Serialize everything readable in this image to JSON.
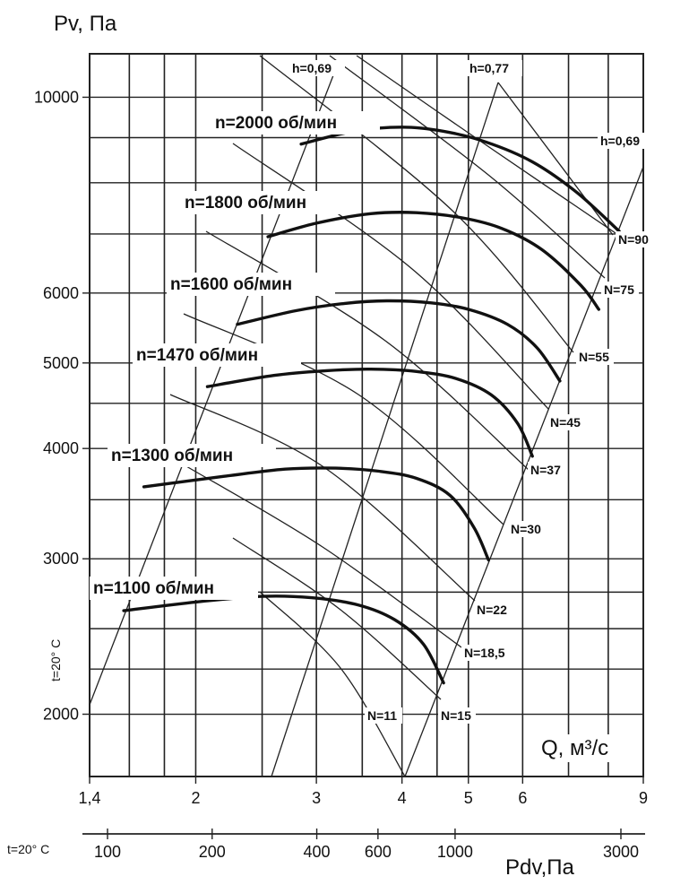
{
  "chart_data": {
    "type": "line",
    "y_axis_title": "Pv, Па",
    "x_axis_title": "Q, м³/с",
    "pdv_axis_title": "Pdv,Па",
    "side_note": "t=20° C",
    "pdv_note": "t=20° C",
    "x_scale": "log",
    "y_scale": "log",
    "x_range": [
      1.4,
      9
    ],
    "y_range": [
      1700,
      11200
    ],
    "x_ticks": [
      {
        "v": 1.4,
        "label": "1,4"
      },
      {
        "v": 2,
        "label": "2"
      },
      {
        "v": 3,
        "label": "3"
      },
      {
        "v": 4,
        "label": "4"
      },
      {
        "v": 5,
        "label": "5"
      },
      {
        "v": 6,
        "label": "6"
      },
      {
        "v": 9,
        "label": "9"
      }
    ],
    "y_ticks": [
      {
        "v": 2000,
        "label": "2000"
      },
      {
        "v": 3000,
        "label": "3000"
      },
      {
        "v": 4000,
        "label": "4000"
      },
      {
        "v": 5000,
        "label": "5000"
      },
      {
        "v": 6000,
        "label": "6000"
      },
      {
        "v": 10000,
        "label": "10000"
      }
    ],
    "pdv_ticks": [
      {
        "v": 100,
        "label": "100"
      },
      {
        "v": 200,
        "label": "200"
      },
      {
        "v": 400,
        "label": "400"
      },
      {
        "v": 600,
        "label": "600"
      },
      {
        "v": 1000,
        "label": "1000"
      },
      {
        "v": 3000,
        "label": "3000"
      }
    ],
    "speed_curves": [
      {
        "name": "n=2000 об/мин",
        "points": [
          [
            2.85,
            8850
          ],
          [
            3.4,
            9150
          ],
          [
            4.0,
            9250
          ],
          [
            4.6,
            9150
          ],
          [
            5.3,
            8900
          ],
          [
            6.2,
            8450
          ],
          [
            7.2,
            7800
          ],
          [
            8.3,
            7050
          ]
        ]
      },
      {
        "name": "n=1800 об/мин",
        "points": [
          [
            2.55,
            6950
          ],
          [
            3.0,
            7200
          ],
          [
            3.6,
            7380
          ],
          [
            4.2,
            7400
          ],
          [
            4.9,
            7300
          ],
          [
            5.6,
            7100
          ],
          [
            6.4,
            6720
          ],
          [
            7.3,
            6120
          ],
          [
            7.75,
            5750
          ]
        ]
      },
      {
        "name": "n=1600 об/мин",
        "points": [
          [
            2.3,
            5530
          ],
          [
            2.8,
            5730
          ],
          [
            3.3,
            5840
          ],
          [
            3.8,
            5880
          ],
          [
            4.4,
            5850
          ],
          [
            5.0,
            5750
          ],
          [
            5.7,
            5530
          ],
          [
            6.3,
            5200
          ],
          [
            6.8,
            4770
          ]
        ]
      },
      {
        "name": "n=1470 об/мин",
        "points": [
          [
            2.08,
            4700
          ],
          [
            2.6,
            4840
          ],
          [
            3.1,
            4900
          ],
          [
            3.6,
            4920
          ],
          [
            4.2,
            4890
          ],
          [
            4.8,
            4800
          ],
          [
            5.4,
            4600
          ],
          [
            5.9,
            4270
          ],
          [
            6.2,
            3920
          ]
        ]
      },
      {
        "name": "n=1300 об/мин",
        "points": [
          [
            1.68,
            3620
          ],
          [
            2.2,
            3720
          ],
          [
            2.7,
            3790
          ],
          [
            3.2,
            3800
          ],
          [
            3.7,
            3770
          ],
          [
            4.2,
            3700
          ],
          [
            4.7,
            3540
          ],
          [
            5.1,
            3250
          ],
          [
            5.35,
            2990
          ]
        ]
      },
      {
        "name": "n=1100 об/мин",
        "points": [
          [
            1.57,
            2620
          ],
          [
            2.0,
            2680
          ],
          [
            2.5,
            2720
          ],
          [
            2.95,
            2710
          ],
          [
            3.45,
            2660
          ],
          [
            3.9,
            2560
          ],
          [
            4.3,
            2400
          ],
          [
            4.6,
            2170
          ]
        ]
      }
    ],
    "power_labels": [
      "N=90",
      "N=75",
      "N=55",
      "N=45",
      "N=37",
      "N=30",
      "N=22",
      "N=18,5",
      "N=15",
      "N=11"
    ],
    "efficiency_labels": [
      "h=0,69",
      "h=0,77",
      "h=0,69"
    ]
  }
}
